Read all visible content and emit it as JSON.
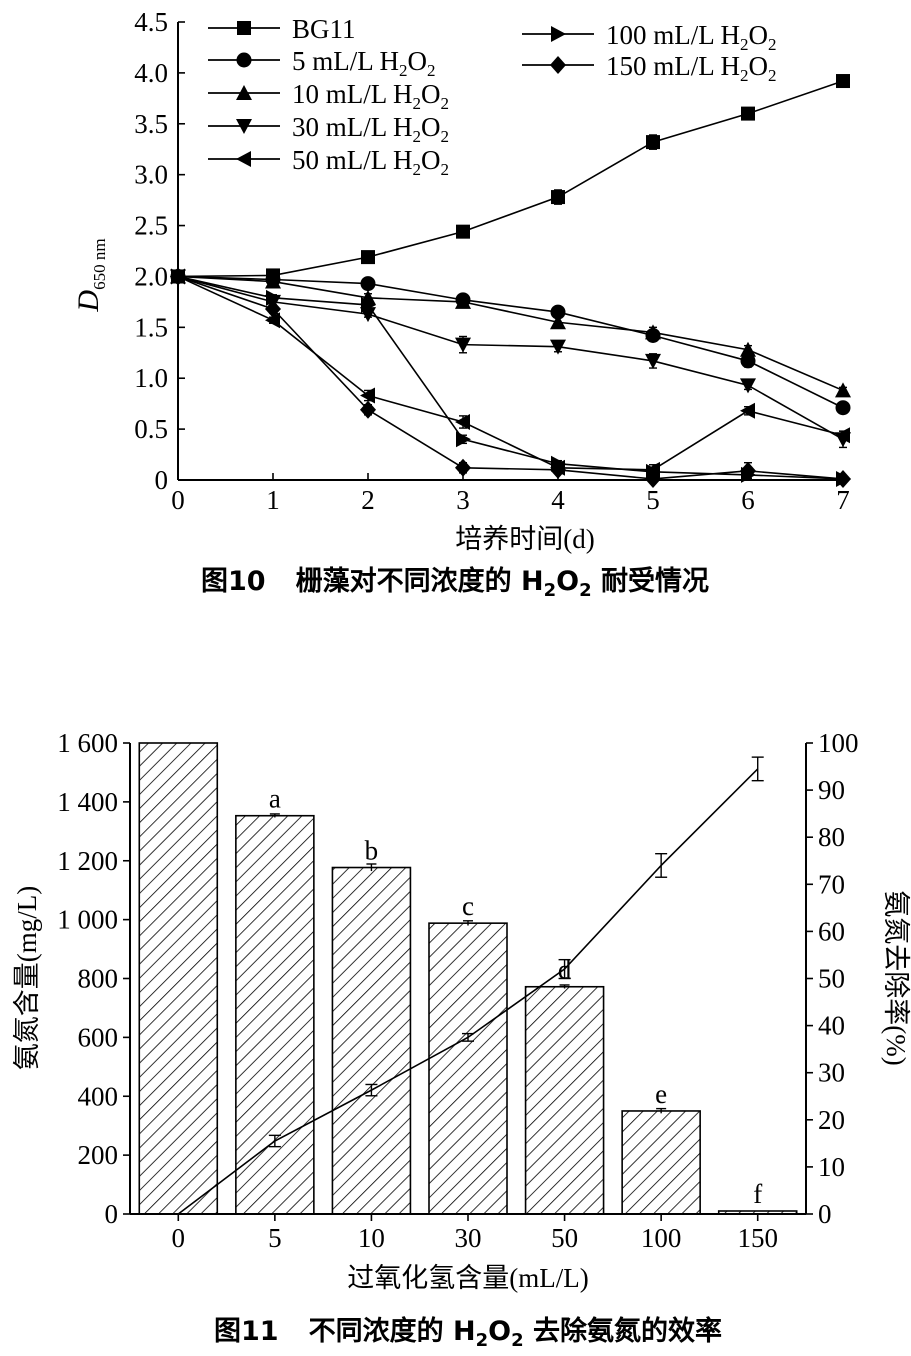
{
  "chart_data": [
    {
      "type": "line",
      "caption": "图10 栅藻对不同浓度的 H₂O₂ 耐受情况",
      "caption_prefix": "图10",
      "caption_text_a": "栅藻对不同浓度的 H",
      "caption_text_b": "O",
      "caption_text_c": " 耐受情况",
      "xlabel": "培养时间(d)",
      "ylabel": "D650 nm",
      "ylabel_main": "D",
      "ylabel_sub": "650 nm",
      "x": [
        0,
        1,
        2,
        3,
        4,
        5,
        6,
        7
      ],
      "xlim": [
        0,
        7
      ],
      "ylim": [
        0,
        4.5
      ],
      "xticks": [
        "0",
        "1",
        "2",
        "3",
        "4",
        "5",
        "6",
        "7"
      ],
      "yticks": [
        "0",
        "0.5",
        "1.0",
        "1.5",
        "2.0",
        "2.5",
        "3.0",
        "3.5",
        "4.0",
        "4.5"
      ],
      "legend_position": "top",
      "series": [
        {
          "name": "BG11",
          "marker": "square",
          "values": [
            2.0,
            2.01,
            2.19,
            2.44,
            2.78,
            3.32,
            3.6,
            3.92
          ],
          "errors": [
            0,
            0.02,
            0.02,
            0.03,
            0.07,
            0.07,
            0.05,
            0.03
          ]
        },
        {
          "name": "5  mL/L H2O2",
          "label_main": "5  mL/L H",
          "label_tail": "O",
          "marker": "circle",
          "values": [
            2.0,
            1.97,
            1.93,
            1.77,
            1.65,
            1.42,
            1.17,
            0.71
          ],
          "errors": [
            0,
            0.02,
            0.02,
            0.05,
            0.04,
            0.05,
            0.06,
            0.04
          ]
        },
        {
          "name": "10 mL/L H2O2",
          "label_main": "10 mL/L H",
          "label_tail": "O",
          "marker": "triangle-up",
          "values": [
            2.0,
            1.95,
            1.79,
            1.75,
            1.55,
            1.45,
            1.28,
            0.88
          ],
          "errors": [
            0,
            0.03,
            0.04,
            0.05,
            0.05,
            0.05,
            0.04,
            0.03
          ]
        },
        {
          "name": "30 mL/L H2O2",
          "label_main": "30 mL/L H",
          "label_tail": "O",
          "marker": "triangle-down",
          "values": [
            2.0,
            1.75,
            1.63,
            1.33,
            1.31,
            1.17,
            0.93,
            0.4
          ],
          "errors": [
            0,
            0.04,
            0.03,
            0.08,
            0.05,
            0.07,
            0.04,
            0.08
          ]
        },
        {
          "name": "50 mL/L H2O2",
          "label_main": "50 mL/L H",
          "label_tail": "O",
          "marker": "triangle-left",
          "values": [
            2.0,
            1.57,
            0.83,
            0.57,
            0.12,
            0.1,
            0.68,
            0.44
          ],
          "errors": [
            0,
            0.03,
            0.05,
            0.06,
            0.04,
            0.05,
            0.04,
            0.04
          ]
        },
        {
          "name": "100 mL/L H2O2",
          "label_main": "100 mL/L H",
          "label_tail": "O",
          "marker": "triangle-right",
          "values": [
            2.0,
            1.79,
            1.72,
            0.4,
            0.16,
            0.08,
            0.05,
            0.01
          ],
          "errors": [
            0,
            0.03,
            0.04,
            0.04,
            0.03,
            0.03,
            0.03,
            0.01
          ]
        },
        {
          "name": "150 mL/L H2O2",
          "label_main": "150 mL/L H",
          "label_tail": "O",
          "marker": "diamond",
          "values": [
            2.0,
            1.68,
            0.69,
            0.12,
            0.1,
            0.01,
            0.09,
            0.01
          ],
          "errors": [
            0,
            0.04,
            0.05,
            0.05,
            0.03,
            0.02,
            0.08,
            0.02
          ]
        }
      ]
    },
    {
      "type": "bar",
      "caption": "图11 不同浓度的 H₂O₂ 去除氨氮的效率",
      "caption_prefix": "图11",
      "caption_text_a": "不同浓度的 H",
      "caption_text_b": "O",
      "caption_text_c": " 去除氨氮的效率",
      "xlabel": "过氧化氢含量(mL/L)",
      "ylabel": "氨氮含量(mg/L)",
      "y2label": "氨氮去除率(%)",
      "categories": [
        "0",
        "5",
        "10",
        "30",
        "50",
        "100",
        "150"
      ],
      "ylim": [
        0,
        1600
      ],
      "y2lim": [
        0,
        100
      ],
      "yticks": [
        "0",
        "200",
        "400",
        "600",
        "800",
        "1 000",
        "1 200",
        "1 400",
        "1 600"
      ],
      "y2ticks": [
        "0",
        "10",
        "20",
        "30",
        "40",
        "50",
        "60",
        "70",
        "80",
        "90",
        "100"
      ],
      "bars": {
        "values": [
          1600,
          1353,
          1177,
          988,
          772,
          350,
          10
        ],
        "errors": [
          0,
          6,
          12,
          8,
          6,
          8,
          0
        ],
        "letters": [
          "",
          "a",
          "b",
          "c",
          "d",
          "e",
          "f"
        ]
      },
      "line": {
        "values": [
          0,
          15.5,
          26.3,
          37.5,
          52,
          74,
          94.5
        ],
        "errors": [
          0,
          1.2,
          1.2,
          0.8,
          2.0,
          2.5,
          2.5
        ]
      }
    }
  ]
}
